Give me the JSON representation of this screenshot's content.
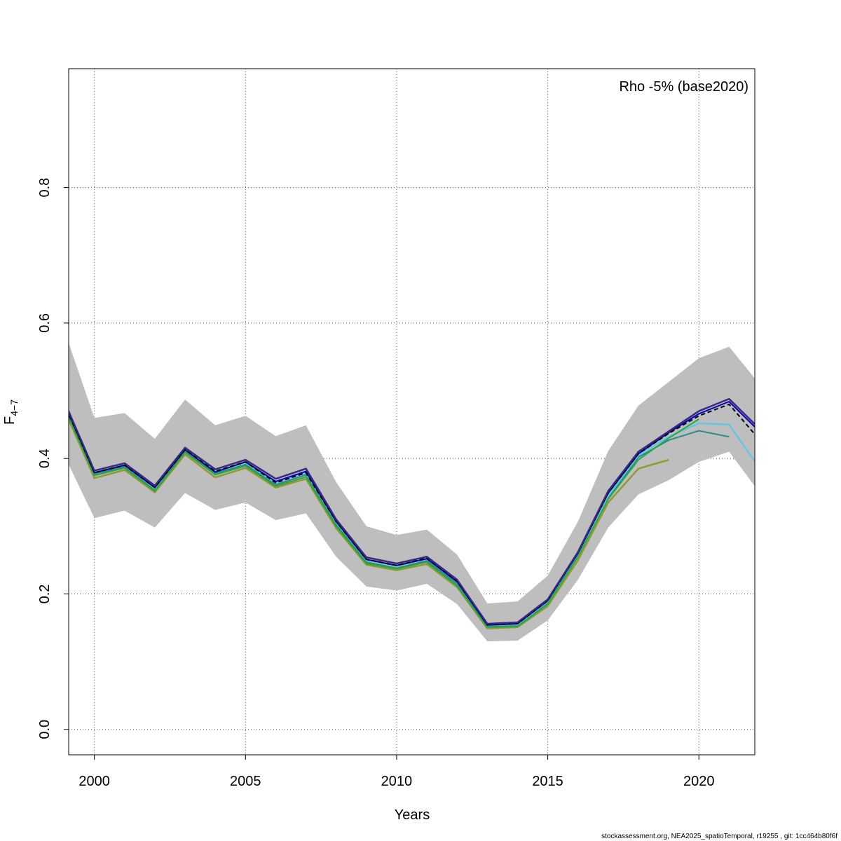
{
  "chart_data": {
    "type": "line",
    "annotation": "Rho -5% (base2020)",
    "xlabel": "Years",
    "ylabel_main": "F",
    "ylabel_sub": "4−7",
    "footer": "stockassessment.org, NEA2025_spatioTemporal, r19255 , git: 1cc464b80f6f",
    "xlim": [
      1999.15,
      2021.85
    ],
    "ylim": [
      -0.0375,
      0.9755
    ],
    "x_ticks": [
      2000,
      2005,
      2010,
      2015,
      2020
    ],
    "y_ticks": [
      0.0,
      0.2,
      0.4,
      0.6,
      0.8
    ],
    "x_tick_labels": [
      "2000",
      "2005",
      "2010",
      "2015",
      "2020"
    ],
    "y_tick_labels": [
      "0.0",
      "0.2",
      "0.4",
      "0.6",
      "0.8"
    ],
    "grid": true,
    "confidence_band": {
      "color": "#bebebe",
      "x": [
        1999,
        2000,
        2001,
        2002,
        2003,
        2004,
        2005,
        2006,
        2007,
        2008,
        2009,
        2010,
        2011,
        2012,
        2013,
        2014,
        2015,
        2016,
        2017,
        2018,
        2019,
        2020,
        2021,
        2022
      ],
      "lower": [
        0.405,
        0.312,
        0.323,
        0.298,
        0.349,
        0.324,
        0.335,
        0.309,
        0.319,
        0.255,
        0.211,
        0.205,
        0.215,
        0.185,
        0.13,
        0.131,
        0.161,
        0.221,
        0.298,
        0.347,
        0.368,
        0.395,
        0.41,
        0.35
      ],
      "upper": [
        0.59,
        0.46,
        0.467,
        0.429,
        0.487,
        0.449,
        0.463,
        0.433,
        0.449,
        0.365,
        0.3,
        0.287,
        0.295,
        0.258,
        0.186,
        0.189,
        0.227,
        0.307,
        0.411,
        0.478,
        0.513,
        0.548,
        0.565,
        0.51
      ]
    },
    "series": [
      {
        "color": "#2b8a8a",
        "width": 2,
        "dash": "",
        "x": [
          1999,
          2000,
          2001,
          2002,
          2003,
          2004,
          2005,
          2006,
          2007,
          2008,
          2009,
          2010,
          2011,
          2012,
          2013,
          2014,
          2015,
          2016,
          2017,
          2018,
          2019,
          2020,
          2021
        ],
        "y": [
          0.478,
          0.377,
          0.388,
          0.354,
          0.411,
          0.378,
          0.391,
          0.361,
          0.376,
          0.303,
          0.247,
          0.238,
          0.249,
          0.215,
          0.152,
          0.154,
          0.187,
          0.258,
          0.342,
          0.402,
          0.427,
          0.441,
          0.432
        ]
      },
      {
        "color": "#8f9b2e",
        "width": 2.5,
        "dash": "",
        "x": [
          1999,
          2000,
          2001,
          2002,
          2003,
          2004,
          2005,
          2006,
          2007,
          2008,
          2009,
          2010,
          2011,
          2012,
          2013,
          2014,
          2015,
          2016,
          2017,
          2018,
          2019
        ],
        "y": [
          0.473,
          0.371,
          0.383,
          0.35,
          0.406,
          0.372,
          0.386,
          0.357,
          0.37,
          0.297,
          0.243,
          0.235,
          0.244,
          0.21,
          0.149,
          0.151,
          0.182,
          0.25,
          0.335,
          0.385,
          0.398
        ]
      },
      {
        "color": "#66c6e4",
        "width": 2.5,
        "dash": "",
        "x": [
          1999,
          2000,
          2001,
          2002,
          2003,
          2004,
          2005,
          2006,
          2007,
          2008,
          2009,
          2010,
          2011,
          2012,
          2013,
          2014,
          2015,
          2016,
          2017,
          2018,
          2019,
          2020,
          2021,
          2022
        ],
        "y": [
          0.483,
          0.379,
          0.39,
          0.356,
          0.414,
          0.381,
          0.394,
          0.364,
          0.379,
          0.306,
          0.25,
          0.241,
          0.252,
          0.218,
          0.154,
          0.155,
          0.189,
          0.259,
          0.345,
          0.405,
          0.432,
          0.452,
          0.45,
          0.386
        ]
      },
      {
        "color": "#22aa44",
        "width": 2,
        "dash": "",
        "x": [
          1999,
          2000,
          2001,
          2002,
          2003,
          2004,
          2005,
          2006,
          2007,
          2008,
          2009,
          2010,
          2011,
          2012,
          2013,
          2014,
          2015,
          2016,
          2017,
          2018,
          2019,
          2020
        ],
        "y": [
          0.476,
          0.375,
          0.386,
          0.352,
          0.409,
          0.376,
          0.389,
          0.359,
          0.373,
          0.3,
          0.245,
          0.237,
          0.247,
          0.212,
          0.151,
          0.152,
          0.185,
          0.255,
          0.34,
          0.398,
          0.43,
          0.458
        ]
      },
      {
        "color": "#0000cc",
        "width": 2,
        "dash": "",
        "x": [
          1999,
          2000,
          2001,
          2002,
          2003,
          2004,
          2005,
          2006,
          2007,
          2008,
          2009,
          2010,
          2011,
          2012,
          2013,
          2014,
          2015,
          2016,
          2017,
          2018,
          2019,
          2020,
          2021,
          2022
        ],
        "y": [
          0.482,
          0.379,
          0.39,
          0.357,
          0.413,
          0.38,
          0.395,
          0.366,
          0.381,
          0.307,
          0.251,
          0.242,
          0.252,
          0.218,
          0.154,
          0.156,
          0.19,
          0.26,
          0.349,
          0.407,
          0.438,
          0.466,
          0.484,
          0.44
        ]
      },
      {
        "color": "#000000",
        "width": 2,
        "dash": "6,4",
        "x": [
          1999,
          2000,
          2001,
          2002,
          2003,
          2004,
          2005,
          2006,
          2007,
          2008,
          2009,
          2010,
          2011,
          2012,
          2013,
          2014,
          2015,
          2016,
          2017,
          2018,
          2019,
          2020,
          2021,
          2022
        ],
        "y": [
          0.481,
          0.379,
          0.39,
          0.357,
          0.413,
          0.381,
          0.395,
          0.364,
          0.379,
          0.307,
          0.251,
          0.242,
          0.253,
          0.219,
          0.155,
          0.156,
          0.19,
          0.261,
          0.349,
          0.407,
          0.437,
          0.463,
          0.48,
          0.428
        ]
      },
      {
        "color": "#3a2a7a",
        "width": 2.5,
        "dash": "",
        "x": [
          1999,
          2000,
          2001,
          2002,
          2003,
          2004,
          2005,
          2006,
          2007,
          2008,
          2009,
          2010,
          2011,
          2012,
          2013,
          2014,
          2015,
          2016,
          2017,
          2018,
          2019,
          2020,
          2021,
          2022
        ],
        "y": [
          0.485,
          0.382,
          0.393,
          0.36,
          0.416,
          0.384,
          0.398,
          0.37,
          0.385,
          0.31,
          0.254,
          0.245,
          0.255,
          0.221,
          0.156,
          0.158,
          0.192,
          0.262,
          0.352,
          0.41,
          0.44,
          0.47,
          0.488,
          0.444
        ]
      }
    ]
  }
}
